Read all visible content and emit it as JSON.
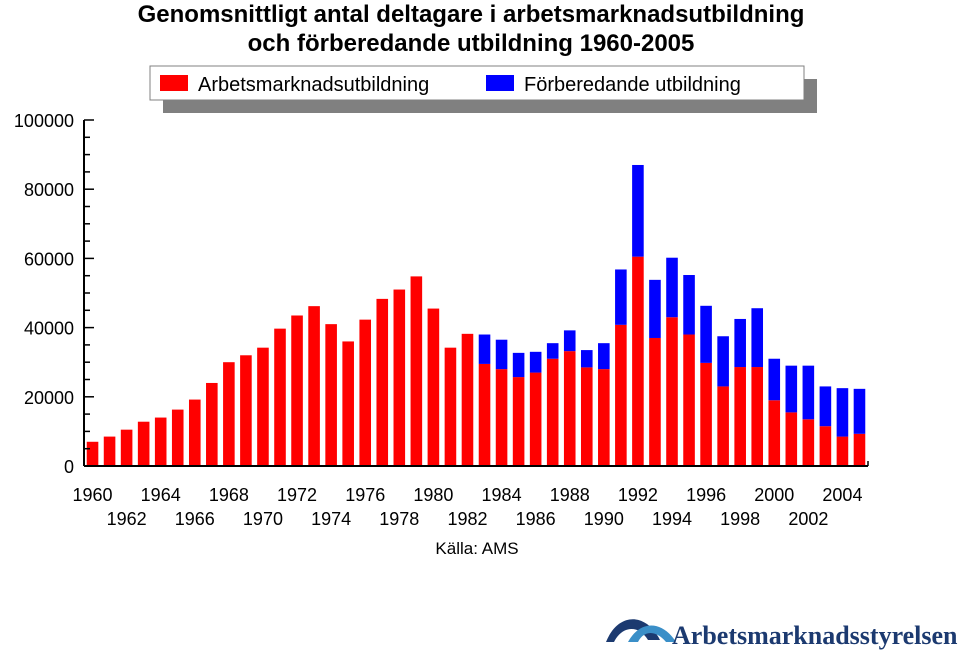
{
  "chart_data": {
    "type": "bar",
    "stacked": true,
    "title_line1": "Genomsnittligt antal deltagare i arbetsmarknadsutbildning",
    "title_line2": "och förberedande utbildning 1960-2005",
    "xlabel": "",
    "ylabel": "",
    "ylim": [
      0,
      100000
    ],
    "grid": false,
    "legend_position": "top",
    "categories": [
      1960,
      1961,
      1962,
      1963,
      1964,
      1965,
      1966,
      1967,
      1968,
      1969,
      1970,
      1971,
      1972,
      1973,
      1974,
      1975,
      1976,
      1977,
      1978,
      1979,
      1980,
      1981,
      1982,
      1983,
      1984,
      1985,
      1986,
      1987,
      1988,
      1989,
      1990,
      1991,
      1992,
      1993,
      1994,
      1995,
      1996,
      1997,
      1998,
      1999,
      2000,
      2001,
      2002,
      2003,
      2004,
      2005
    ],
    "y_ticks": [
      0,
      20000,
      40000,
      60000,
      80000,
      100000
    ],
    "x_ticks_top": [
      1960,
      1964,
      1968,
      1972,
      1976,
      1980,
      1984,
      1988,
      1992,
      1996,
      2000,
      2004
    ],
    "x_ticks_bottom": [
      1962,
      1966,
      1970,
      1974,
      1978,
      1982,
      1986,
      1990,
      1994,
      1998,
      2002
    ],
    "series": [
      {
        "name": "Arbetsmarknadsutbildning",
        "color": "#ff0000",
        "values": [
          7000,
          8500,
          10500,
          12800,
          14000,
          16300,
          19200,
          24000,
          30000,
          32000,
          34200,
          39700,
          43500,
          46200,
          41000,
          36000,
          42300,
          48300,
          51000,
          54800,
          45500,
          34200,
          38200,
          29500,
          28000,
          25700,
          27000,
          31000,
          33200,
          28500,
          28000,
          40800,
          60500,
          37000,
          43000,
          38000,
          29800,
          23000,
          28600,
          28600,
          19000,
          15500,
          13500,
          11500,
          8500,
          9300
        ]
      },
      {
        "name": "Förberedande utbildning",
        "color": "#0000ff",
        "values": [
          0,
          0,
          0,
          0,
          0,
          0,
          0,
          0,
          0,
          0,
          0,
          0,
          0,
          0,
          0,
          0,
          0,
          0,
          0,
          0,
          0,
          0,
          0,
          8500,
          8500,
          7000,
          6000,
          4500,
          6000,
          5000,
          7500,
          16000,
          26500,
          16800,
          17200,
          17200,
          16500,
          14500,
          13900,
          17000,
          12000,
          13500,
          15500,
          11500,
          14000,
          13000
        ]
      }
    ],
    "source": "Källa: AMS",
    "logo_text": "Arbetsmarknadsstyrelsen"
  }
}
